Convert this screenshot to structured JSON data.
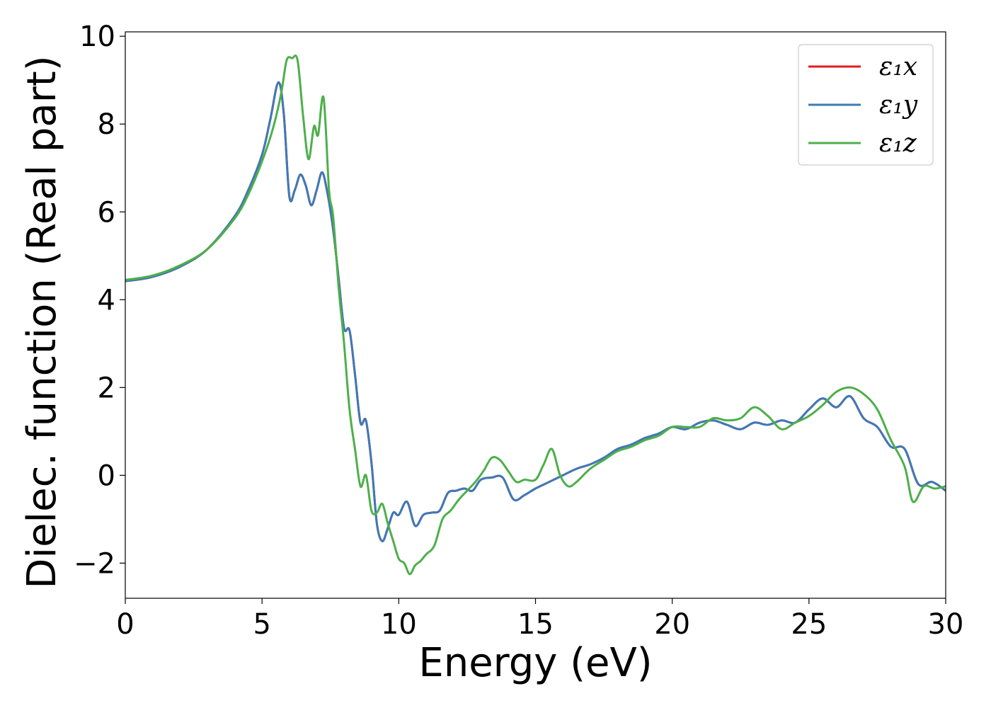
{
  "chart_data": {
    "type": "line",
    "xlabel": "Energy (eV)",
    "ylabel": "Dielec. function (Real part)",
    "xlim": [
      0,
      30
    ],
    "ylim": [
      -2.8,
      10.1
    ],
    "xticks": [
      0,
      5,
      10,
      15,
      20,
      25,
      30
    ],
    "xtick_labels": [
      "0",
      "5",
      "10",
      "15",
      "20",
      "25",
      "30"
    ],
    "yticks": [
      -2,
      0,
      2,
      4,
      6,
      8,
      10
    ],
    "ytick_labels": [
      "−2",
      "0",
      "2",
      "4",
      "6",
      "8",
      "10"
    ],
    "grid": false,
    "legend_position": "top-right",
    "series": [
      {
        "name": "ε₁x",
        "color": "#e41a1c",
        "x": [
          0,
          1,
          2,
          3,
          4,
          4.5,
          5,
          5.3,
          5.6,
          5.8,
          6.0,
          6.2,
          6.4,
          6.6,
          6.8,
          7.0,
          7.2,
          7.4,
          7.6,
          7.8,
          8.0,
          8.2,
          8.4,
          8.6,
          8.8,
          9.0,
          9.2,
          9.4,
          9.6,
          9.8,
          10.0,
          10.3,
          10.6,
          10.9,
          11.2,
          11.5,
          11.8,
          12.1,
          12.4,
          12.7,
          13.0,
          13.4,
          13.8,
          14.2,
          14.6,
          15.0,
          15.5,
          16.0,
          16.5,
          17.0,
          17.5,
          18.0,
          18.5,
          19.0,
          19.5,
          20.0,
          20.5,
          21.0,
          21.5,
          22.0,
          22.5,
          23.0,
          23.5,
          24.0,
          24.5,
          25.0,
          25.5,
          26.0,
          26.5,
          27.0,
          27.5,
          28.0,
          28.5,
          29.0,
          29.5,
          30.0
        ],
        "y": [
          4.42,
          4.52,
          4.75,
          5.15,
          5.9,
          6.5,
          7.3,
          8.1,
          8.95,
          8.2,
          6.35,
          6.5,
          6.85,
          6.6,
          6.15,
          6.5,
          6.9,
          6.4,
          5.6,
          4.5,
          3.35,
          3.3,
          2.3,
          1.2,
          1.25,
          0.3,
          -1.1,
          -1.5,
          -1.2,
          -0.85,
          -0.9,
          -0.6,
          -1.15,
          -0.9,
          -0.85,
          -0.8,
          -0.4,
          -0.35,
          -0.3,
          -0.35,
          -0.1,
          -0.05,
          -0.05,
          -0.55,
          -0.45,
          -0.3,
          -0.15,
          0.0,
          0.15,
          0.25,
          0.4,
          0.6,
          0.7,
          0.85,
          0.95,
          1.1,
          1.05,
          1.2,
          1.25,
          1.15,
          1.05,
          1.2,
          1.15,
          1.25,
          1.2,
          1.5,
          1.75,
          1.55,
          1.8,
          1.3,
          1.1,
          0.65,
          0.6,
          -0.2,
          -0.15,
          -0.35
        ]
      },
      {
        "name": "ε₁y",
        "color": "#3d7ab8",
        "x": [
          0,
          1,
          2,
          3,
          4,
          4.5,
          5,
          5.3,
          5.6,
          5.8,
          6.0,
          6.2,
          6.4,
          6.6,
          6.8,
          7.0,
          7.2,
          7.4,
          7.6,
          7.8,
          8.0,
          8.2,
          8.4,
          8.6,
          8.8,
          9.0,
          9.2,
          9.4,
          9.6,
          9.8,
          10.0,
          10.3,
          10.6,
          10.9,
          11.2,
          11.5,
          11.8,
          12.1,
          12.4,
          12.7,
          13.0,
          13.4,
          13.8,
          14.2,
          14.6,
          15.0,
          15.5,
          16.0,
          16.5,
          17.0,
          17.5,
          18.0,
          18.5,
          19.0,
          19.5,
          20.0,
          20.5,
          21.0,
          21.5,
          22.0,
          22.5,
          23.0,
          23.5,
          24.0,
          24.5,
          25.0,
          25.5,
          26.0,
          26.5,
          27.0,
          27.5,
          28.0,
          28.5,
          29.0,
          29.5,
          30.0
        ],
        "y": [
          4.42,
          4.52,
          4.75,
          5.15,
          5.9,
          6.5,
          7.3,
          8.1,
          8.95,
          8.2,
          6.35,
          6.5,
          6.85,
          6.6,
          6.15,
          6.5,
          6.9,
          6.4,
          5.6,
          4.5,
          3.35,
          3.3,
          2.3,
          1.2,
          1.25,
          0.3,
          -1.1,
          -1.5,
          -1.2,
          -0.85,
          -0.9,
          -0.6,
          -1.15,
          -0.9,
          -0.85,
          -0.8,
          -0.4,
          -0.35,
          -0.3,
          -0.35,
          -0.1,
          -0.05,
          -0.05,
          -0.55,
          -0.45,
          -0.3,
          -0.15,
          0.0,
          0.15,
          0.25,
          0.4,
          0.6,
          0.7,
          0.85,
          0.95,
          1.1,
          1.05,
          1.2,
          1.25,
          1.15,
          1.05,
          1.2,
          1.15,
          1.25,
          1.2,
          1.5,
          1.75,
          1.55,
          1.8,
          1.3,
          1.1,
          0.65,
          0.6,
          -0.2,
          -0.15,
          -0.35
        ]
      },
      {
        "name": "ε₁z",
        "color": "#4daf4a",
        "x": [
          0,
          1,
          2,
          3,
          4,
          4.5,
          5,
          5.4,
          5.7,
          5.9,
          6.1,
          6.3,
          6.5,
          6.7,
          6.9,
          7.05,
          7.25,
          7.45,
          7.6,
          7.8,
          8.0,
          8.2,
          8.4,
          8.6,
          8.8,
          9.0,
          9.2,
          9.4,
          9.6,
          9.8,
          10.0,
          10.2,
          10.4,
          10.6,
          10.8,
          11.0,
          11.3,
          11.6,
          11.9,
          12.2,
          12.5,
          12.8,
          13.1,
          13.4,
          13.7,
          14.0,
          14.3,
          14.6,
          15.0,
          15.3,
          15.6,
          15.9,
          16.2,
          16.5,
          17.0,
          17.5,
          18.0,
          18.5,
          19.0,
          19.5,
          20.0,
          20.5,
          21.0,
          21.5,
          22.0,
          22.5,
          23.0,
          23.5,
          24.0,
          24.5,
          25.0,
          25.5,
          26.0,
          26.5,
          27.0,
          27.5,
          28.0,
          28.5,
          28.8,
          29.2,
          29.6,
          30.0
        ],
        "y": [
          4.45,
          4.55,
          4.78,
          5.15,
          5.85,
          6.4,
          7.15,
          7.9,
          8.7,
          9.45,
          9.5,
          9.45,
          8.2,
          7.2,
          7.95,
          7.75,
          8.6,
          6.5,
          5.9,
          4.3,
          3.0,
          1.5,
          0.6,
          -0.25,
          0.0,
          -0.8,
          -0.85,
          -0.65,
          -1.1,
          -1.5,
          -1.9,
          -2.0,
          -2.25,
          -2.05,
          -1.95,
          -1.8,
          -1.6,
          -1.0,
          -0.8,
          -0.55,
          -0.35,
          -0.15,
          0.1,
          0.4,
          0.35,
          0.1,
          -0.15,
          -0.1,
          -0.1,
          0.25,
          0.6,
          0.0,
          -0.25,
          -0.15,
          0.15,
          0.35,
          0.55,
          0.65,
          0.8,
          0.9,
          1.1,
          1.1,
          1.1,
          1.3,
          1.25,
          1.3,
          1.55,
          1.35,
          1.05,
          1.2,
          1.35,
          1.6,
          1.9,
          2.0,
          1.85,
          1.5,
          0.8,
          0.2,
          -0.6,
          -0.25,
          -0.3,
          -0.25
        ]
      }
    ]
  }
}
